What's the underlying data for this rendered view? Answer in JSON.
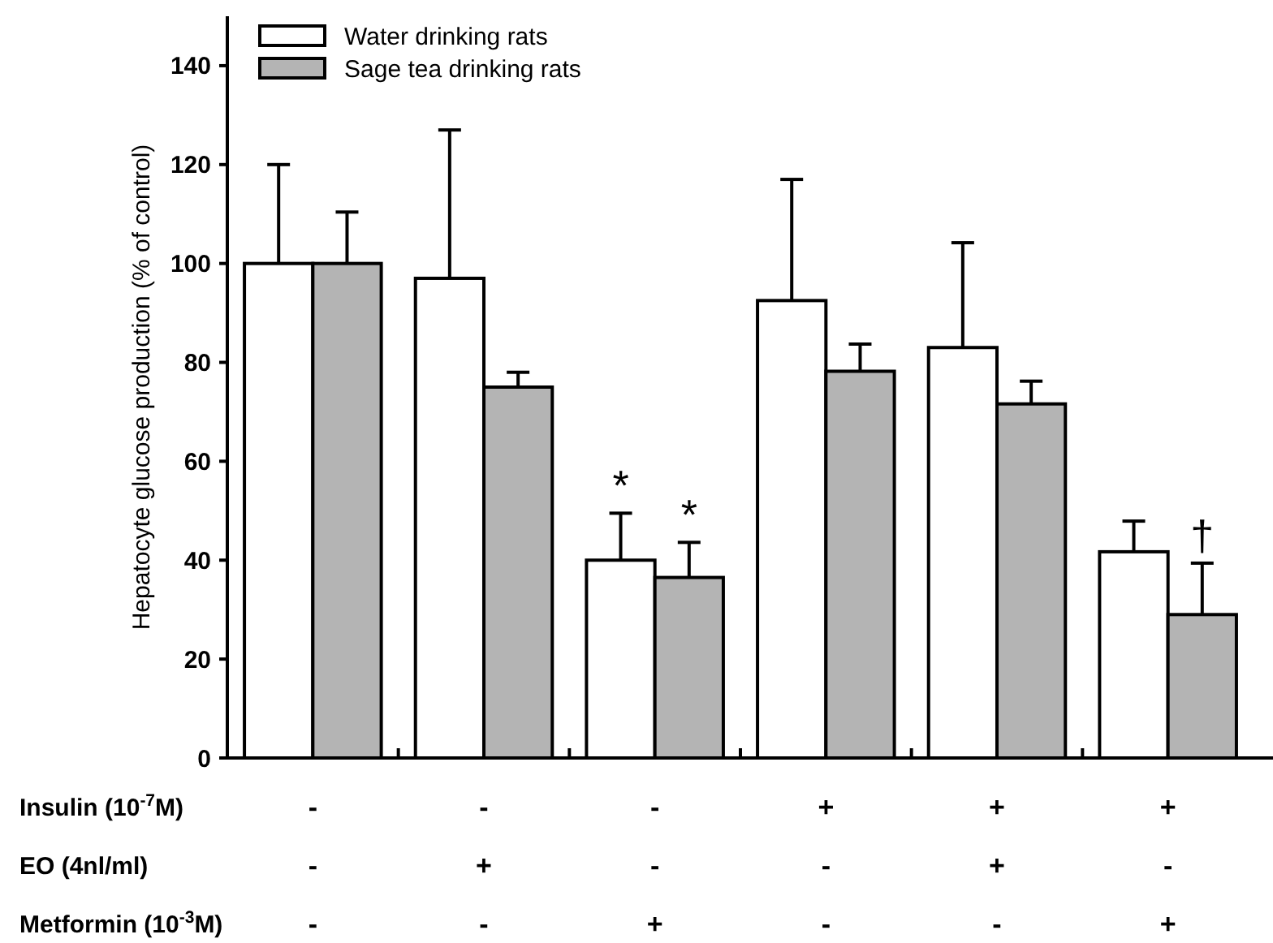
{
  "chart_data": {
    "type": "bar",
    "ylabel": "Hepatocyte glucose production (% of control)",
    "categories": [
      "-\n-\n-",
      "-\n+\n-",
      "-\n-\n+",
      "+\n-\n-",
      "+\n+\n-",
      "+\n-\n+"
    ],
    "series": [
      {
        "name": "Water drinking rats",
        "color": "#ffffff",
        "values": [
          100,
          97,
          40,
          92.5,
          83,
          41.7
        ],
        "errors": [
          [
            100,
            120
          ],
          [
            97,
            127
          ],
          [
            40,
            49.5
          ],
          [
            92.5,
            117
          ],
          [
            83,
            104.2
          ],
          [
            41.7,
            47.9
          ]
        ]
      },
      {
        "name": "Sage tea drinking rats",
        "color": "#b4b4b4",
        "values": [
          100,
          75,
          36.5,
          78.2,
          71.6,
          29
        ],
        "errors": [
          [
            100,
            110.4
          ],
          [
            75,
            78
          ],
          [
            36.5,
            43.6
          ],
          [
            78.2,
            83.7
          ],
          [
            71.6,
            76.2
          ],
          [
            29,
            39.4
          ]
        ]
      }
    ],
    "ylim": [
      0,
      150
    ],
    "yticks": [
      0,
      20,
      40,
      60,
      80,
      100,
      120,
      140
    ],
    "legend": "top left",
    "annotations": [
      "Insulin (10$^{-7}$M)",
      "EO (4nl/ml)",
      "Metformin (10$^{-3}$M)",
      {
        "text": "*",
        "x": "-\n-\n+",
        "y": 40
      },
      {
        "text": "*",
        "x": "-\n-\n+",
        "y": 36.5
      },
      {
        "text": "†",
        "x": "+\n-\n+",
        "y": 29
      }
    ]
  }
}
